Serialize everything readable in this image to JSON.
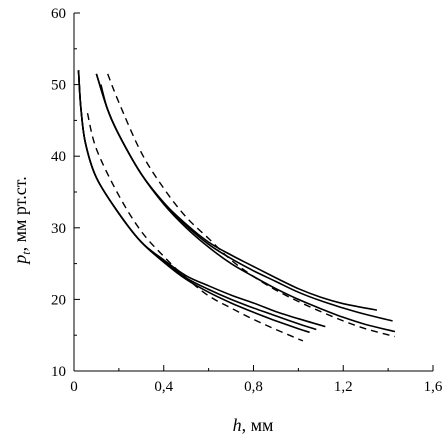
{
  "chart_data": {
    "type": "line",
    "title": "",
    "xlabel": {
      "symbol": "h",
      "unit": ",  мм"
    },
    "ylabel": {
      "symbol": "p",
      "subscript": "t",
      "unit": ",  мм рт.ст."
    },
    "xlim": [
      0,
      1.6
    ],
    "ylim": [
      10,
      60
    ],
    "xticks": [
      0,
      0.4,
      0.8,
      1.2,
      1.6
    ],
    "xtick_labels": [
      "0",
      "0,4",
      "0,8",
      "1,2",
      "1,6"
    ],
    "yticks": [
      10,
      20,
      30,
      40,
      50,
      60
    ],
    "ytick_labels": [
      "10",
      "20",
      "30",
      "40",
      "50",
      "60"
    ],
    "grid": false,
    "series": [
      {
        "style": "solid",
        "x": [
          0.02,
          0.03,
          0.05,
          0.1,
          0.2,
          0.3,
          0.4,
          0.5,
          0.6,
          0.7,
          0.8,
          0.9,
          1.0,
          1.12
        ],
        "y": [
          52,
          47,
          42,
          37,
          32,
          28,
          25.5,
          23.3,
          21.9,
          20.6,
          19.5,
          18.3,
          17.3,
          16.2
        ]
      },
      {
        "style": "solid",
        "x": [
          0.02,
          0.03,
          0.05,
          0.1,
          0.2,
          0.3,
          0.4,
          0.5,
          0.6,
          0.7,
          0.8,
          0.9,
          1.0,
          1.08
        ],
        "y": [
          52,
          47,
          42,
          37,
          32,
          28,
          25.3,
          23,
          21.4,
          20,
          18.8,
          17.7,
          16.6,
          15.8
        ]
      },
      {
        "style": "solid",
        "x": [
          0.02,
          0.03,
          0.05,
          0.1,
          0.2,
          0.3,
          0.4,
          0.5,
          0.6,
          0.7,
          0.8,
          0.9,
          1.0,
          1.05
        ],
        "y": [
          52,
          47,
          42,
          37,
          32,
          28,
          25.2,
          22.8,
          21,
          19.5,
          18.2,
          17,
          15.9,
          15.4
        ]
      },
      {
        "style": "dashed",
        "x": [
          0.06,
          0.1,
          0.2,
          0.3,
          0.4,
          0.5,
          0.6,
          0.7,
          0.8,
          0.9,
          1.02
        ],
        "y": [
          46,
          41,
          34.5,
          29.5,
          26,
          23,
          20.5,
          18.8,
          17.2,
          15.8,
          14.2
        ]
      },
      {
        "style": "solid",
        "x": [
          0.1,
          0.15,
          0.2,
          0.3,
          0.4,
          0.5,
          0.6,
          0.7,
          0.8,
          0.9,
          1.0,
          1.1,
          1.2,
          1.35
        ],
        "y": [
          51.5,
          46.5,
          43,
          37.5,
          33.5,
          30.5,
          28,
          26.2,
          24.6,
          23,
          21.5,
          20.3,
          19.4,
          18.5
        ]
      },
      {
        "style": "solid",
        "x": [
          0.1,
          0.15,
          0.2,
          0.3,
          0.4,
          0.5,
          0.6,
          0.7,
          0.8,
          0.9,
          1.0,
          1.1,
          1.2,
          1.3,
          1.42
        ],
        "y": [
          51.5,
          46.5,
          43,
          37.5,
          33.5,
          30.3,
          27.7,
          25.7,
          24,
          22.5,
          21,
          19.8,
          18.8,
          17.9,
          17
        ]
      },
      {
        "style": "solid",
        "x": [
          0.12,
          0.15,
          0.2,
          0.3,
          0.4,
          0.5,
          0.6,
          0.7,
          0.8,
          0.9,
          1.0,
          1.1,
          1.2,
          1.3,
          1.43
        ],
        "y": [
          50,
          46.5,
          43,
          37.5,
          33.3,
          30,
          27.3,
          25,
          23.2,
          21.5,
          20,
          18.7,
          17.5,
          16.5,
          15.5
        ]
      },
      {
        "style": "dashed",
        "x": [
          0.15,
          0.2,
          0.3,
          0.4,
          0.5,
          0.6,
          0.7,
          0.8,
          0.9,
          1.0,
          1.1,
          1.2,
          1.3,
          1.43
        ],
        "y": [
          51.5,
          47.5,
          40.5,
          35.5,
          31.5,
          28.5,
          25.5,
          23.2,
          21.3,
          19.7,
          18.3,
          17,
          15.9,
          14.8
        ]
      }
    ]
  }
}
